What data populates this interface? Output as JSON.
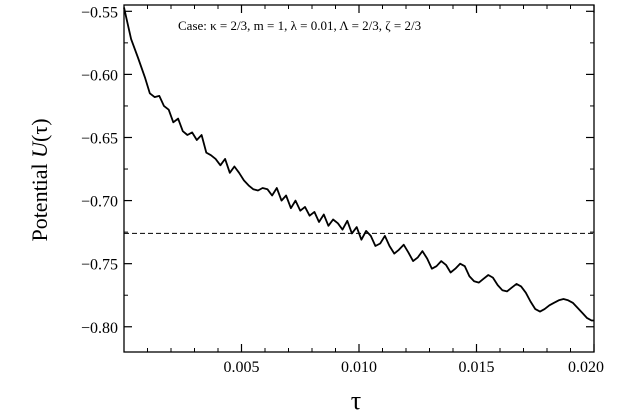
{
  "chart_data": {
    "type": "line",
    "annotation": "Case: κ = 2/3, m = 1, λ = 0.01, Λ = 2/3, ζ = 2/3",
    "xlabel": "τ",
    "ylabel_prefix": "Potential ",
    "ylabel_italic": "U",
    "ylabel_suffix": "(τ)",
    "xlim": [
      0.0,
      0.02
    ],
    "ylim": [
      -0.82,
      -0.545
    ],
    "x_ticks": [
      {
        "value": 0.005,
        "label": "0.005"
      },
      {
        "value": 0.01,
        "label": "0.010"
      },
      {
        "value": 0.015,
        "label": "0.015"
      },
      {
        "value": 0.02,
        "label": "0.020"
      }
    ],
    "y_ticks": [
      {
        "value": -0.55,
        "label": "−0.55"
      },
      {
        "value": -0.6,
        "label": "−0.60"
      },
      {
        "value": -0.65,
        "label": "−0.65"
      },
      {
        "value": -0.7,
        "label": "−0.70"
      },
      {
        "value": -0.75,
        "label": "−0.75"
      },
      {
        "value": -0.8,
        "label": "−0.80"
      }
    ],
    "reference_line": {
      "y": -0.726,
      "style": "dashed"
    },
    "series": [
      {
        "x": [
          0.0,
          0.0003,
          0.0006,
          0.0009,
          0.0011,
          0.0013,
          0.0015,
          0.0017,
          0.0019,
          0.0021,
          0.0023,
          0.0025,
          0.0027,
          0.0029,
          0.0031,
          0.0033,
          0.0035,
          0.0037,
          0.0039,
          0.0041,
          0.0043,
          0.0045,
          0.0047,
          0.0049,
          0.0051,
          0.0053,
          0.0055,
          0.0057,
          0.0059,
          0.0061,
          0.0063,
          0.0065,
          0.0067,
          0.0069,
          0.0071,
          0.0073,
          0.0075,
          0.0077,
          0.0079,
          0.0081,
          0.0083,
          0.0085,
          0.0087,
          0.0089,
          0.0091,
          0.0093,
          0.0095,
          0.0097,
          0.0099,
          0.0101,
          0.0103,
          0.0105,
          0.0107,
          0.0109,
          0.0111,
          0.0113,
          0.0115,
          0.0117,
          0.0119,
          0.0121,
          0.0123,
          0.0125,
          0.0127,
          0.0129,
          0.0131,
          0.0133,
          0.0135,
          0.0137,
          0.0139,
          0.0141,
          0.0143,
          0.0145,
          0.0147,
          0.0149,
          0.0151,
          0.0153,
          0.0155,
          0.0157,
          0.0159,
          0.0161,
          0.0163,
          0.0165,
          0.0167,
          0.0169,
          0.0171,
          0.0173,
          0.0175,
          0.0177,
          0.0179,
          0.0181,
          0.0183,
          0.0185,
          0.0187,
          0.0189,
          0.0191,
          0.0193,
          0.0195,
          0.0197,
          0.0199,
          0.02
        ],
        "y": [
          -0.547,
          -0.572,
          -0.587,
          -0.603,
          -0.615,
          -0.618,
          -0.617,
          -0.625,
          -0.628,
          -0.638,
          -0.635,
          -0.645,
          -0.648,
          -0.646,
          -0.652,
          -0.648,
          -0.662,
          -0.664,
          -0.667,
          -0.672,
          -0.667,
          -0.678,
          -0.673,
          -0.678,
          -0.684,
          -0.688,
          -0.691,
          -0.692,
          -0.69,
          -0.691,
          -0.696,
          -0.69,
          -0.7,
          -0.696,
          -0.706,
          -0.7,
          -0.708,
          -0.705,
          -0.712,
          -0.709,
          -0.717,
          -0.711,
          -0.72,
          -0.715,
          -0.718,
          -0.723,
          -0.716,
          -0.726,
          -0.721,
          -0.731,
          -0.724,
          -0.728,
          -0.736,
          -0.734,
          -0.728,
          -0.736,
          -0.742,
          -0.739,
          -0.735,
          -0.741,
          -0.748,
          -0.745,
          -0.74,
          -0.746,
          -0.754,
          -0.752,
          -0.748,
          -0.751,
          -0.757,
          -0.754,
          -0.75,
          -0.752,
          -0.76,
          -0.764,
          -0.765,
          -0.762,
          -0.759,
          -0.761,
          -0.767,
          -0.771,
          -0.772,
          -0.769,
          -0.766,
          -0.768,
          -0.773,
          -0.78,
          -0.786,
          -0.788,
          -0.786,
          -0.783,
          -0.781,
          -0.779,
          -0.778,
          -0.779,
          -0.781,
          -0.785,
          -0.789,
          -0.793,
          -0.795,
          -0.795
        ]
      }
    ]
  }
}
